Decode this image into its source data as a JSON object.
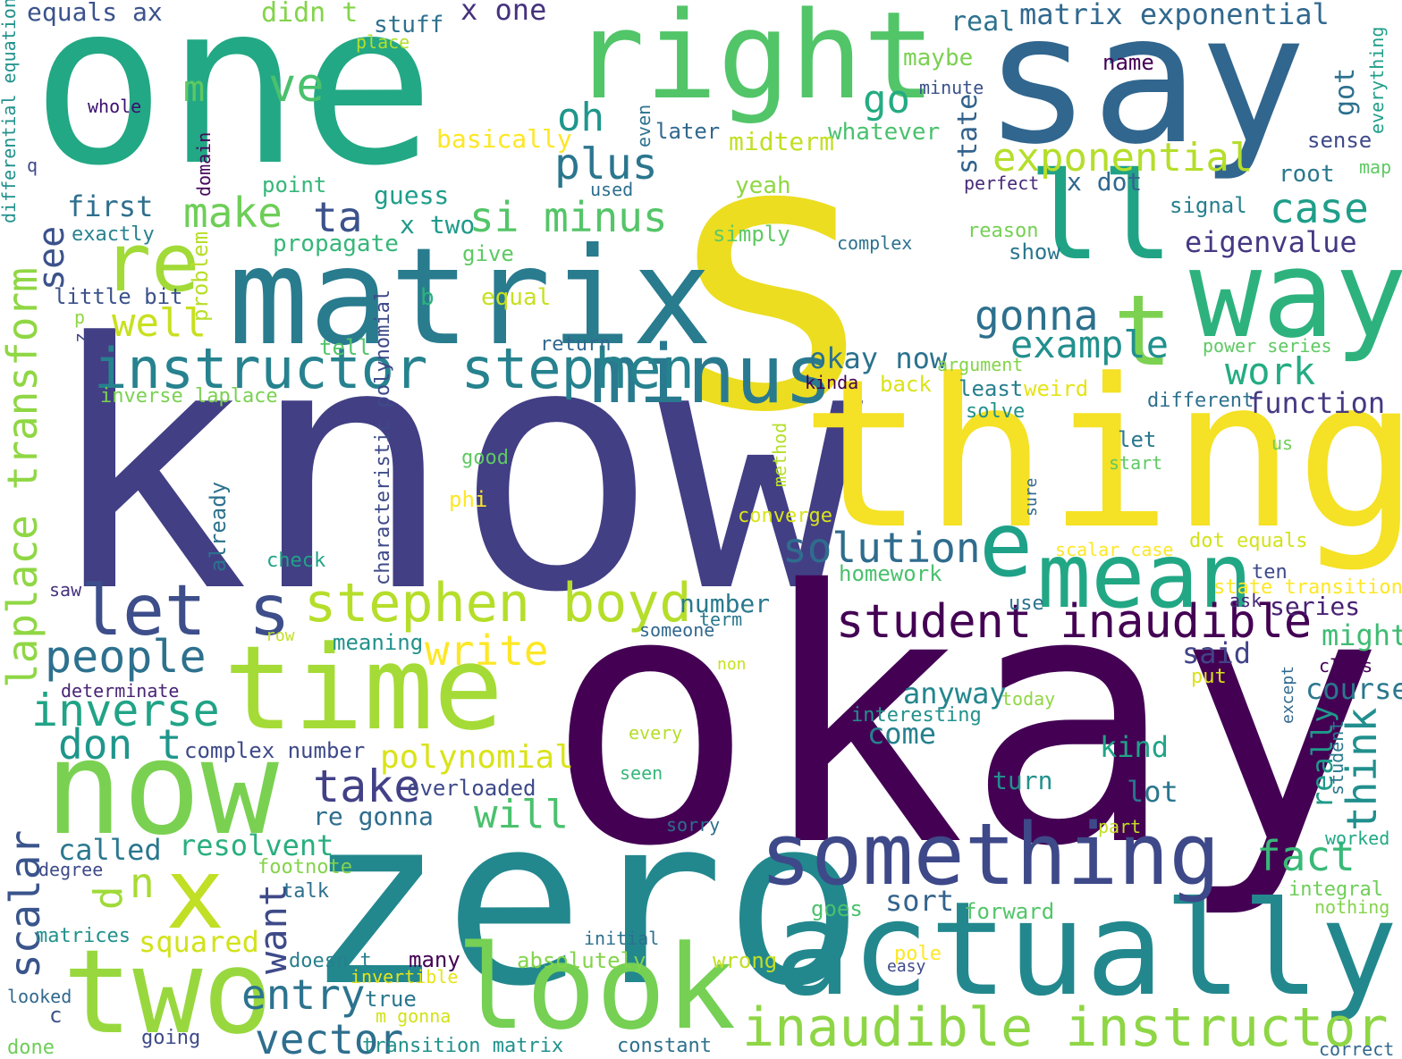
{
  "words": [
    {
      "text": "one",
      "color": "#22a884"
    },
    {
      "text": "say",
      "color": "#31668e"
    },
    {
      "text": "right",
      "color": "#52c569"
    },
    {
      "text": "s",
      "color": "#ecdd21"
    },
    {
      "text": "know",
      "color": "#423f85"
    },
    {
      "text": "okay",
      "color": "#440154"
    },
    {
      "text": "zero",
      "color": "#22888e"
    },
    {
      "text": "thing",
      "color": "#f5e125"
    },
    {
      "text": "matrix",
      "color": "#297b8e"
    },
    {
      "text": "ll",
      "color": "#20a385"
    },
    {
      "text": "way",
      "color": "#2db27d"
    },
    {
      "text": "t",
      "color": "#7cd250"
    },
    {
      "text": "re",
      "color": "#a2da37"
    },
    {
      "text": "time",
      "color": "#a5db36"
    },
    {
      "text": "now",
      "color": "#7ad151"
    },
    {
      "text": "x",
      "color": "#c0df25"
    },
    {
      "text": "two",
      "color": "#98d83e"
    },
    {
      "text": "look",
      "color": "#75d054"
    },
    {
      "text": "actually",
      "color": "#23888e"
    },
    {
      "text": "something",
      "color": "#3e4989"
    },
    {
      "text": "mean",
      "color": "#22a785"
    },
    {
      "text": "e",
      "color": "#1fa188"
    },
    {
      "text": "minus",
      "color": "#297a8e"
    },
    {
      "text": "instructor stephen",
      "color": "#26828e"
    },
    {
      "text": "let s",
      "color": "#3d4e8a"
    },
    {
      "text": "stephen boyd",
      "color": "#b5de2b"
    },
    {
      "text": "student inaudible",
      "color": "#440154"
    },
    {
      "text": "inaudible instructor",
      "color": "#8ed645"
    },
    {
      "text": "laplace transform",
      "color": "#8fd744"
    },
    {
      "text": "plus",
      "color": "#2a768e"
    },
    {
      "text": "make",
      "color": "#6ece58"
    },
    {
      "text": "ta",
      "color": "#3b528b"
    },
    {
      "text": "si minus",
      "color": "#54c568"
    },
    {
      "text": "oh",
      "color": "#1f968b"
    },
    {
      "text": "ve",
      "color": "#4ac16d"
    },
    {
      "text": "m",
      "color": "#5ec962"
    },
    {
      "text": "go",
      "color": "#25ab82"
    },
    {
      "text": "exponential",
      "color": "#b5de2b"
    },
    {
      "text": "matrix exponential",
      "color": "#31688e"
    },
    {
      "text": "case",
      "color": "#1f9e89"
    },
    {
      "text": "eigenvalue",
      "color": "#443983"
    },
    {
      "text": "gonna",
      "color": "#2d708e"
    },
    {
      "text": "example",
      "color": "#21908d"
    },
    {
      "text": "work",
      "color": "#25ac82"
    },
    {
      "text": "function",
      "color": "#443a83"
    },
    {
      "text": "okay now",
      "color": "#2c728e"
    },
    {
      "text": "solution",
      "color": "#2f6c8e"
    },
    {
      "text": "people",
      "color": "#2d718e"
    },
    {
      "text": "well",
      "color": "#c8e020"
    },
    {
      "text": "inverse",
      "color": "#20a386"
    },
    {
      "text": "don t",
      "color": "#1f968b"
    },
    {
      "text": "write",
      "color": "#fde725"
    },
    {
      "text": "polynomial",
      "color": "#dae319"
    },
    {
      "text": "take",
      "color": "#424086"
    },
    {
      "text": "will",
      "color": "#4ac16d"
    },
    {
      "text": "think",
      "color": "#218f8d"
    },
    {
      "text": "see",
      "color": "#3b528b"
    },
    {
      "text": "first",
      "color": "#2e6f8e"
    },
    {
      "text": "scalar",
      "color": "#3a548c"
    },
    {
      "text": "called",
      "color": "#2a778e"
    },
    {
      "text": "n",
      "color": "#a8db34"
    },
    {
      "text": "d",
      "color": "#a0da39"
    },
    {
      "text": "want",
      "color": "#3e4a89"
    },
    {
      "text": "entry",
      "color": "#2c738e"
    },
    {
      "text": "vector",
      "color": "#2e6e8e"
    },
    {
      "text": "fact",
      "color": "#38b977"
    },
    {
      "text": "sort",
      "color": "#33638d"
    },
    {
      "text": "resolvent",
      "color": "#29af7f"
    },
    {
      "text": "squared",
      "color": "#d2e21b"
    },
    {
      "text": "come",
      "color": "#26818e"
    },
    {
      "text": "anyway",
      "color": "#24868e"
    },
    {
      "text": "course",
      "color": "#2a788e"
    },
    {
      "text": "might",
      "color": "#3fbc73"
    },
    {
      "text": "said",
      "color": "#414487"
    },
    {
      "text": "series",
      "color": "#482173"
    },
    {
      "text": "kind",
      "color": "#20a486"
    },
    {
      "text": "lot",
      "color": "#2a768e"
    },
    {
      "text": "turn",
      "color": "#21918c"
    },
    {
      "text": "number",
      "color": "#297a8e"
    },
    {
      "text": "really",
      "color": "#1f9a8a"
    },
    {
      "text": "equals ax",
      "color": "#3b528b"
    },
    {
      "text": "x one",
      "color": "#46327e"
    },
    {
      "text": "didn t",
      "color": "#84d44b"
    },
    {
      "text": "stuff",
      "color": "#2d718e"
    },
    {
      "text": "real",
      "color": "#2c728e"
    },
    {
      "text": "maybe",
      "color": "#7ad151"
    },
    {
      "text": "name",
      "color": "#440154"
    },
    {
      "text": "minute",
      "color": "#3b528b"
    },
    {
      "text": "got",
      "color": "#2d708e"
    },
    {
      "text": "later",
      "color": "#31688e"
    },
    {
      "text": "whatever",
      "color": "#4ac16d"
    },
    {
      "text": "midterm",
      "color": "#c2df23"
    },
    {
      "text": "basically",
      "color": "#fde725"
    },
    {
      "text": "sense",
      "color": "#3e4a89"
    },
    {
      "text": "root",
      "color": "#2a788e"
    },
    {
      "text": "map",
      "color": "#5ec962"
    },
    {
      "text": "everything",
      "color": "#1f9e89"
    },
    {
      "text": "place",
      "color": "#b5de2b"
    },
    {
      "text": "whole",
      "color": "#3b0f70"
    },
    {
      "text": "differential equation",
      "color": "#21918c"
    },
    {
      "text": "q",
      "color": "#3e4a89"
    },
    {
      "text": "domain",
      "color": "#46085c"
    },
    {
      "text": "point",
      "color": "#35b779"
    },
    {
      "text": "guess",
      "color": "#1f9e89"
    },
    {
      "text": "x two",
      "color": "#1f9a8a"
    },
    {
      "text": "used",
      "color": "#2e6e8e"
    },
    {
      "text": "yeah",
      "color": "#90d743"
    },
    {
      "text": "x dot",
      "color": "#31688e"
    },
    {
      "text": "perfect",
      "color": "#472a7a"
    },
    {
      "text": "state",
      "color": "#33638d"
    },
    {
      "text": "even",
      "color": "#2c728e"
    },
    {
      "text": "signal",
      "color": "#277f8e"
    },
    {
      "text": "exactly",
      "color": "#26828e"
    },
    {
      "text": "propagate",
      "color": "#35b779"
    },
    {
      "text": "give",
      "color": "#5ec962"
    },
    {
      "text": "simply",
      "color": "#5ec962"
    },
    {
      "text": "complex",
      "color": "#2c728e"
    },
    {
      "text": "reason",
      "color": "#75d054"
    },
    {
      "text": "show",
      "color": "#2a768e"
    },
    {
      "text": "problem",
      "color": "#b8de29"
    },
    {
      "text": "little bit",
      "color": "#3b528b"
    },
    {
      "text": "b",
      "color": "#2db27d"
    },
    {
      "text": "equal",
      "color": "#c8e020"
    },
    {
      "text": "p",
      "color": "#8fd744"
    },
    {
      "text": "z",
      "color": "#414487"
    },
    {
      "text": "characteristic polynomial",
      "color": "#3e4a89"
    },
    {
      "text": "return",
      "color": "#31688e"
    },
    {
      "text": "tell",
      "color": "#52c569"
    },
    {
      "text": "power series",
      "color": "#5ec962"
    },
    {
      "text": "argument",
      "color": "#84d44b"
    },
    {
      "text": "kinda",
      "color": "#440154"
    },
    {
      "text": "back",
      "color": "#dae319"
    },
    {
      "text": "least",
      "color": "#277f8e"
    },
    {
      "text": "weird",
      "color": "#e5e419"
    },
    {
      "text": "different",
      "color": "#2d708e"
    },
    {
      "text": "solve",
      "color": "#21918c"
    },
    {
      "text": "inverse laplace",
      "color": "#7ad151"
    },
    {
      "text": "let",
      "color": "#2a788e"
    },
    {
      "text": "start",
      "color": "#5ec962"
    },
    {
      "text": "us",
      "color": "#6ece58"
    },
    {
      "text": "good",
      "color": "#5ec962"
    },
    {
      "text": "method",
      "color": "#b5de2b"
    },
    {
      "text": "phi",
      "color": "#fde725"
    },
    {
      "text": "converge",
      "color": "#dae319"
    },
    {
      "text": "sure",
      "color": "#31688e"
    },
    {
      "text": "already",
      "color": "#2c728e"
    },
    {
      "text": "check",
      "color": "#20a486"
    },
    {
      "text": "homework",
      "color": "#4ac16d"
    },
    {
      "text": "scalar case",
      "color": "#fde725"
    },
    {
      "text": "dot equals",
      "color": "#d2e21b"
    },
    {
      "text": "ten",
      "color": "#3e4a89"
    },
    {
      "text": "state transition",
      "color": "#fde725"
    },
    {
      "text": "saw",
      "color": "#46327e"
    },
    {
      "text": "row",
      "color": "#c2df23"
    },
    {
      "text": "meaning",
      "color": "#21918c"
    },
    {
      "text": "someone",
      "color": "#31688e"
    },
    {
      "text": "term",
      "color": "#2a788e"
    },
    {
      "text": "use",
      "color": "#2c728e"
    },
    {
      "text": "ask",
      "color": "#482878"
    },
    {
      "text": "determinate",
      "color": "#482475"
    },
    {
      "text": "non",
      "color": "#c8e020"
    },
    {
      "text": "put",
      "color": "#dae319"
    },
    {
      "text": "class",
      "color": "#440154"
    },
    {
      "text": "complex number",
      "color": "#3e4a89"
    },
    {
      "text": "interesting",
      "color": "#21918c"
    },
    {
      "text": "today",
      "color": "#90d743"
    },
    {
      "text": "except",
      "color": "#31688e"
    },
    {
      "text": "every",
      "color": "#b5de2b"
    },
    {
      "text": "student",
      "color": "#2a788e"
    },
    {
      "text": "overloaded",
      "color": "#3e4a89"
    },
    {
      "text": "seen",
      "color": "#35b779"
    },
    {
      "text": "re gonna",
      "color": "#2e6e8e"
    },
    {
      "text": "sorry",
      "color": "#2d708e"
    },
    {
      "text": "part",
      "color": "#c2df23"
    },
    {
      "text": "worked",
      "color": "#22a884"
    },
    {
      "text": "degree",
      "color": "#3e4a89"
    },
    {
      "text": "footnote",
      "color": "#84d44b"
    },
    {
      "text": "talk",
      "color": "#2d708e"
    },
    {
      "text": "goes",
      "color": "#4ac16d"
    },
    {
      "text": "forward",
      "color": "#52c569"
    },
    {
      "text": "integral",
      "color": "#6ece58"
    },
    {
      "text": "nothing",
      "color": "#84d44b"
    },
    {
      "text": "matrices",
      "color": "#21918c"
    },
    {
      "text": "initial",
      "color": "#2d708e"
    },
    {
      "text": "doesn t",
      "color": "#277f8e"
    },
    {
      "text": "many",
      "color": "#440154"
    },
    {
      "text": "absolutely",
      "color": "#84d44b"
    },
    {
      "text": "wrong",
      "color": "#c2df23"
    },
    {
      "text": "pole",
      "color": "#fde725"
    },
    {
      "text": "easy",
      "color": "#3e4a89"
    },
    {
      "text": "invertible",
      "color": "#e5e419"
    },
    {
      "text": "true",
      "color": "#2a788e"
    },
    {
      "text": "looked",
      "color": "#31688e"
    },
    {
      "text": "c",
      "color": "#3b528b"
    },
    {
      "text": "m gonna",
      "color": "#d2e21b"
    },
    {
      "text": "done",
      "color": "#6ece58"
    },
    {
      "text": "going",
      "color": "#3e4a89"
    },
    {
      "text": "transition matrix",
      "color": "#21918c"
    },
    {
      "text": "constant",
      "color": "#2d708e"
    },
    {
      "text": "correct",
      "color": "#31688e"
    }
  ]
}
